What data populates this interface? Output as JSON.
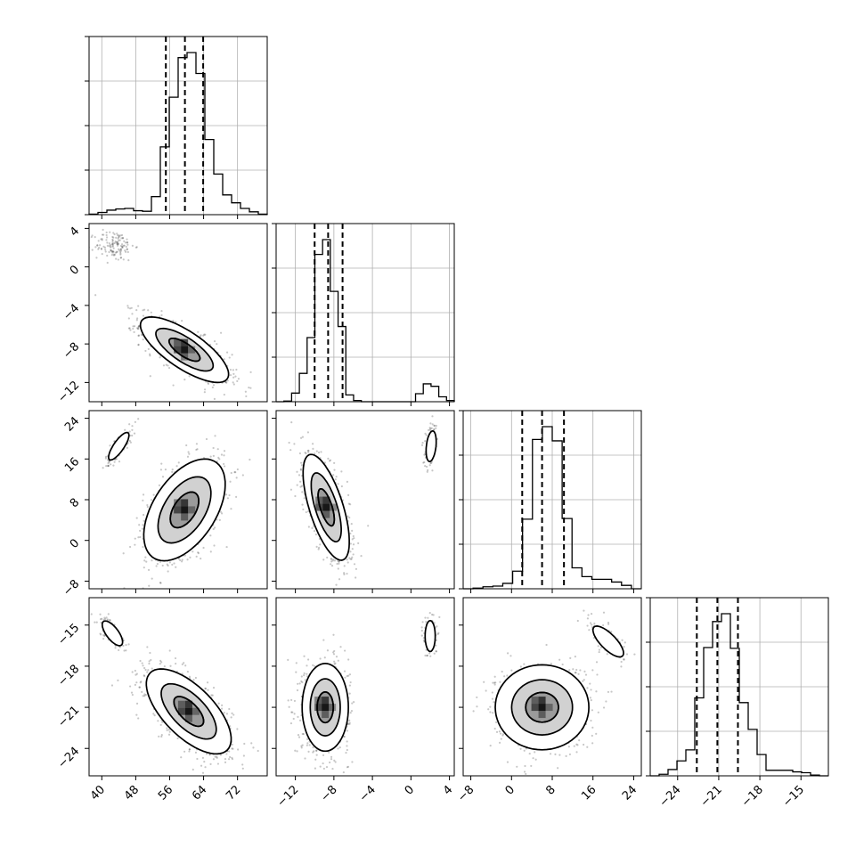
{
  "chart_data": {
    "type": "corner",
    "params": [
      {
        "range": [
          37,
          79
        ],
        "ticks": [
          40,
          48,
          56,
          64,
          72
        ],
        "tick_labels": [
          "40",
          "48",
          "56",
          "64",
          "72"
        ],
        "quantiles": [
          55.1,
          59.6,
          63.9
        ],
        "hist_counts": [
          1,
          4,
          8,
          10,
          11,
          7,
          6,
          32,
          120,
          208,
          278,
          287,
          250,
          133,
          72,
          35,
          21,
          11,
          5,
          1
        ]
      },
      {
        "range": [
          -14,
          4.5
        ],
        "ticks": [
          -12,
          -8,
          -4,
          0,
          4
        ],
        "tick_labels": [
          "−12",
          "−8",
          "−4",
          "0",
          "4"
        ],
        "quantiles": [
          -10.0,
          -8.6,
          -7.1
        ],
        "hist_counts": [
          0,
          1,
          14,
          46,
          104,
          239,
          263,
          179,
          122,
          11,
          2,
          0,
          0,
          0,
          0,
          0,
          0,
          0,
          13,
          29,
          25,
          8,
          2
        ]
      },
      {
        "range": [
          -9.5,
          25.5
        ],
        "ticks": [
          -8,
          0,
          8,
          16,
          24
        ],
        "tick_labels": [
          "−8",
          "0",
          "8",
          "16",
          "24"
        ],
        "quantiles": [
          2.1,
          6.0,
          10.3
        ],
        "hist_counts": [
          0,
          1,
          3,
          4,
          8,
          26,
          103,
          221,
          240,
          219,
          104,
          31,
          18,
          14,
          14,
          10,
          5,
          0
        ]
      },
      {
        "range": [
          -26,
          -13
        ],
        "ticks": [
          -24,
          -21,
          -18,
          -15
        ],
        "tick_labels": [
          "−24",
          "−21",
          "−18",
          "−15"
        ],
        "quantiles": [
          -22.6,
          -21.1,
          -19.6
        ],
        "hist_counts": [
          0,
          2,
          8,
          19,
          33,
          99,
          163,
          196,
          206,
          162,
          93,
          59,
          27,
          7,
          7,
          7,
          5,
          4,
          1,
          0
        ]
      }
    ],
    "pairs": [
      {
        "row": 1,
        "col": 0,
        "modes": [
          {
            "mean": [
              59.5,
              -8.6
            ],
            "sd": [
              5.2,
              1.7
            ],
            "rho": -0.75,
            "n": 900,
            "contour_scales": [
              0.7,
              1.3,
              2.0
            ]
          },
          {
            "mean": [
              43,
              2.2
            ],
            "sd": [
              2.3,
              0.8
            ],
            "rho": 0.0,
            "n": 130,
            "contour_scales": []
          }
        ]
      },
      {
        "row": 2,
        "col": 0,
        "modes": [
          {
            "mean": [
              59.5,
              6
            ],
            "sd": [
              4.8,
              5
            ],
            "rho": 0.5,
            "n": 900,
            "contour_scales": [
              0.7,
              1.3,
              2.0
            ]
          },
          {
            "mean": [
              44,
              18.5
            ],
            "sd": [
              1.6,
              1.8
            ],
            "rho": 0.8,
            "n": 130,
            "contour_scales": [
              1.5
            ]
          }
        ]
      },
      {
        "row": 2,
        "col": 1,
        "modes": [
          {
            "mean": [
              -8.8,
              6.5
            ],
            "sd": [
              1.2,
              5.2
            ],
            "rho": -0.65,
            "n": 900,
            "contour_scales": [
              0.7,
              1.3,
              2.0
            ]
          },
          {
            "mean": [
              2.1,
              18.5
            ],
            "sd": [
              0.35,
              2.0
            ],
            "rho": 0.3,
            "n": 130,
            "contour_scales": [
              1.5
            ]
          }
        ]
      },
      {
        "row": 3,
        "col": 0,
        "modes": [
          {
            "mean": [
              60.5,
              -21.3
            ],
            "sd": [
              5.0,
              1.55
            ],
            "rho": -0.65,
            "n": 900,
            "contour_scales": [
              0.7,
              1.3,
              2.0
            ]
          },
          {
            "mean": [
              42.5,
              -15.6
            ],
            "sd": [
              1.6,
              0.6
            ],
            "rho": -0.7,
            "n": 130,
            "contour_scales": [
              1.5
            ]
          }
        ]
      },
      {
        "row": 3,
        "col": 1,
        "modes": [
          {
            "mean": [
              -8.9,
              -21.0
            ],
            "sd": [
              1.2,
              1.6
            ],
            "rho": 0.0,
            "n": 900,
            "contour_scales": [
              0.7,
              1.3,
              2.0
            ]
          },
          {
            "mean": [
              2.0,
              -15.8
            ],
            "sd": [
              0.35,
              0.75
            ],
            "rho": 0.0,
            "n": 130,
            "contour_scales": [
              1.5
            ]
          }
        ]
      },
      {
        "row": 3,
        "col": 2,
        "modes": [
          {
            "mean": [
              6.0,
              -21.0
            ],
            "sd": [
              4.6,
              1.55
            ],
            "rho": 0.0,
            "n": 900,
            "contour_scales": [
              0.7,
              1.3,
              2.0
            ]
          },
          {
            "mean": [
              19.0,
              -16.2
            ],
            "sd": [
              2.0,
              0.75
            ],
            "rho": -0.75,
            "n": 130,
            "contour_scales": [
              1.5
            ]
          }
        ]
      }
    ],
    "grid": true,
    "colors": {
      "ink": "#000000",
      "grid": "#b0b0b0",
      "background": "#ffffff"
    }
  }
}
